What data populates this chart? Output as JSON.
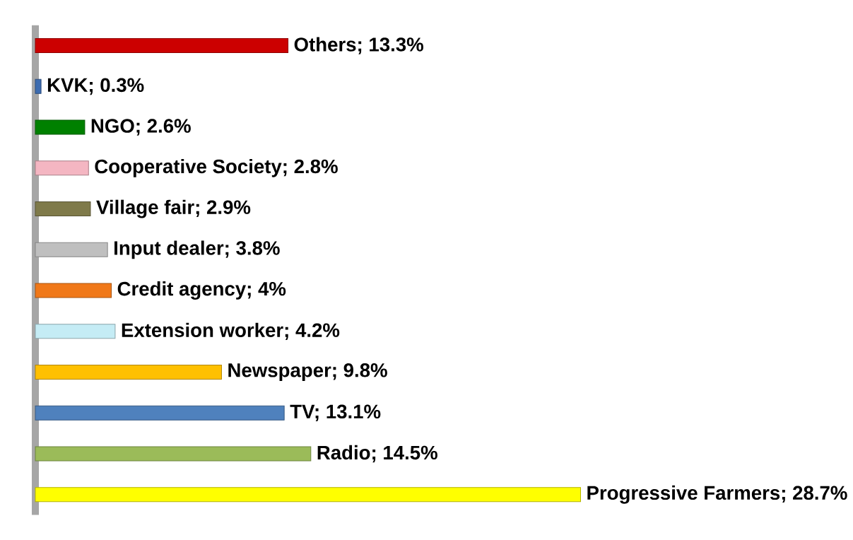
{
  "chart_data": {
    "type": "bar",
    "orientation": "horizontal",
    "categories": [
      null,
      null,
      null,
      null,
      null,
      null,
      null,
      null,
      null,
      null,
      null,
      null
    ],
    "values": [
      13.3,
      0.3,
      2.6,
      2.8,
      2.9,
      3.8,
      4,
      4.2,
      9.8,
      13.1,
      14.5,
      28.7
    ],
    "colors": [
      "#cc0000",
      "#3d6cb0",
      "#008000",
      "#f4b6c2",
      "#7f7a4a",
      "#bfbfbf",
      "#f07818",
      "#c5ecf5",
      "#ffc000",
      "#4f81bd",
      "#9bbb59",
      "#ffff00"
    ],
    "value_labels": [
      "Others; 13.3%",
      "KVK; 0.3%",
      "NGO; 2.6%",
      "Cooperative Society; 2.8%",
      "Village fair; 2.9%",
      "Input dealer; 3.8%",
      "Credit agency; 4%",
      "Extension worker; 4.2%",
      "Newspaper; 9.8%",
      "TV; 13.1%",
      "Radio; 14.5%",
      "Progressive Farmers; 28.7%"
    ]
  }
}
